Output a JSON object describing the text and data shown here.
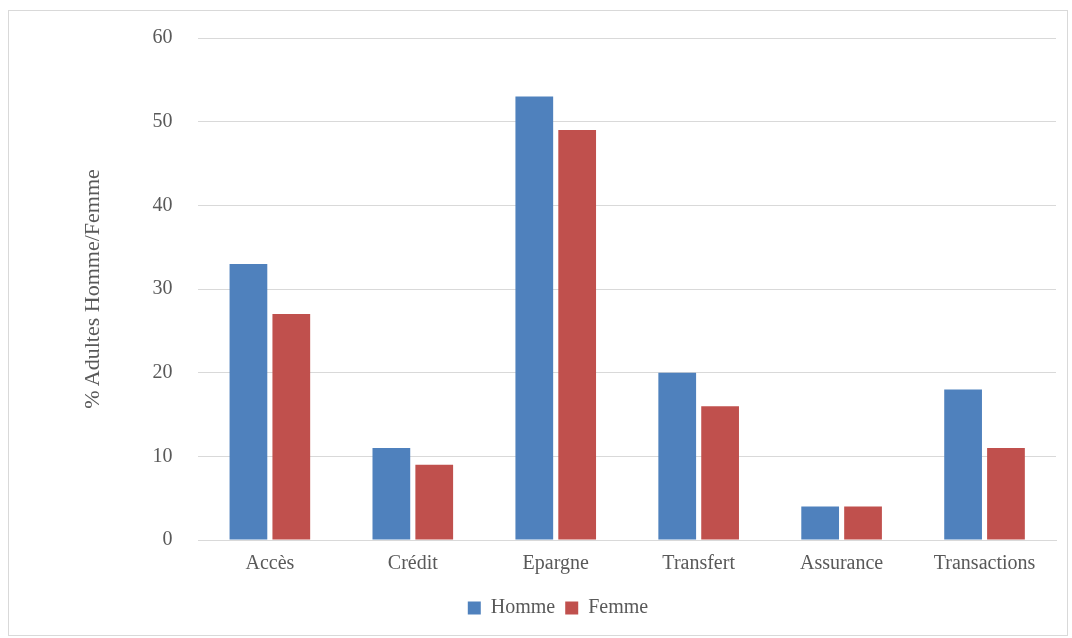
{
  "chart_data": {
    "type": "bar",
    "ylabel": "% Adultes Homme/Femme",
    "categories": [
      "Accès",
      "Crédit",
      "Epargne",
      "Transfert",
      "Assurance",
      "Transactions"
    ],
    "series": [
      {
        "name": "Homme",
        "color": "#4f81bd",
        "values": [
          33,
          11,
          53,
          20,
          4,
          18
        ]
      },
      {
        "name": "Femme",
        "color": "#c0504d",
        "values": [
          27,
          9,
          49,
          16,
          4,
          11
        ]
      }
    ],
    "ylim": [
      0,
      60
    ],
    "yticks": [
      0,
      10,
      20,
      30,
      40,
      50,
      60
    ],
    "grid": "y",
    "legend": "bottom"
  }
}
